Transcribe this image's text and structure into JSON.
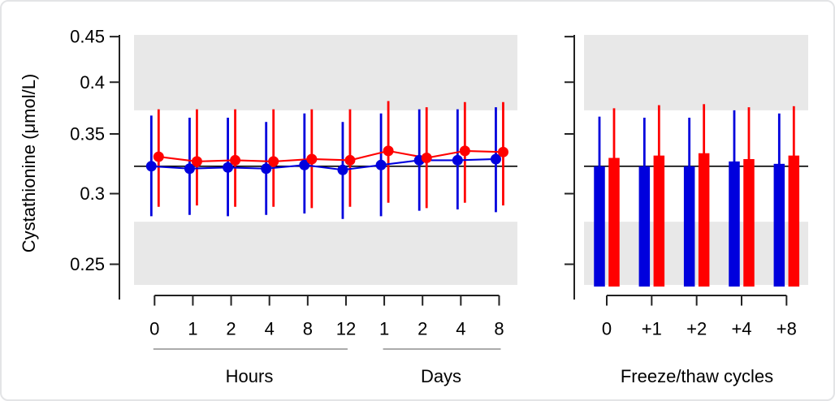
{
  "colors": {
    "series_blue": "#0000dd",
    "series_red": "#ff0000",
    "out_of_range_band": "#e8e8e8",
    "reference_line": "#000000",
    "axis": "#222222",
    "group_rule": "#8f8f8f",
    "text": "#000000",
    "background": "#ffffff",
    "frame_border": "#e3e4e6"
  },
  "labels": {
    "y_axis_title": "Cystathionine (μmol/L)",
    "group_hours": "Hours",
    "group_days": "Days",
    "freeze_thaw": "Freeze/thaw cycles"
  },
  "chart_data": [
    {
      "id": "storage-time-panel",
      "type": "scatter",
      "ylabel": "Cystathionine (μmol/L)",
      "yscale": "log",
      "ylim": [
        0.237,
        0.452
      ],
      "yticks": [
        0.45,
        0.4,
        0.35,
        0.3,
        0.25
      ],
      "ytick_labels": [
        "0.45",
        "0.4",
        "0.35",
        "0.3",
        "0.25"
      ],
      "reference_line": 0.322,
      "shaded_bands": [
        {
          "from": 0.372,
          "to": 0.452
        },
        {
          "from": 0.237,
          "to": 0.279
        }
      ],
      "x_groups": [
        {
          "label": "Hours",
          "ticks": [
            "0",
            "1",
            "2",
            "4",
            "8",
            "12"
          ]
        },
        {
          "label": "Days",
          "ticks": [
            "1",
            "2",
            "4",
            "8"
          ]
        }
      ],
      "grid": false,
      "legend": false,
      "series": [
        {
          "name": "blue",
          "color": "#0000dd",
          "values": [
            0.322,
            0.32,
            0.321,
            0.32,
            0.323,
            0.319,
            0.323,
            0.327,
            0.327,
            0.328
          ],
          "err_lo": [
            0.283,
            0.284,
            0.283,
            0.284,
            0.285,
            0.281,
            0.283,
            0.287,
            0.288,
            0.286
          ],
          "err_hi": [
            0.367,
            0.365,
            0.365,
            0.361,
            0.369,
            0.361,
            0.369,
            0.373,
            0.373,
            0.375
          ]
        },
        {
          "name": "red",
          "color": "#ff0000",
          "values": [
            0.33,
            0.326,
            0.327,
            0.326,
            0.328,
            0.327,
            0.335,
            0.329,
            0.335,
            0.334
          ],
          "err_lo": [
            0.29,
            0.291,
            0.29,
            0.29,
            0.289,
            0.29,
            0.293,
            0.289,
            0.293,
            0.291
          ],
          "err_hi": [
            0.373,
            0.373,
            0.373,
            0.373,
            0.373,
            0.373,
            0.381,
            0.375,
            0.38,
            0.38
          ]
        }
      ]
    },
    {
      "id": "freeze-thaw-panel",
      "type": "bar",
      "xlabel": "Freeze/thaw cycles",
      "categories": [
        "0",
        "+1",
        "+2",
        "+4",
        "+8"
      ],
      "yscale": "log",
      "ylim": [
        0.237,
        0.452
      ],
      "yticks": [
        0.45,
        0.4,
        0.35,
        0.3,
        0.25
      ],
      "ytick_labels_shown": false,
      "reference_line": 0.322,
      "shaded_bands": [
        {
          "from": 0.372,
          "to": 0.452
        },
        {
          "from": 0.237,
          "to": 0.279
        }
      ],
      "grid": false,
      "legend": false,
      "series": [
        {
          "name": "blue",
          "color": "#0000dd",
          "values": [
            0.322,
            0.322,
            0.322,
            0.326,
            0.324
          ],
          "err_hi": [
            0.366,
            0.365,
            0.365,
            0.372,
            0.369
          ]
        },
        {
          "name": "red",
          "color": "#ff0000",
          "values": [
            0.329,
            0.331,
            0.333,
            0.328,
            0.331
          ],
          "err_hi": [
            0.374,
            0.377,
            0.378,
            0.375,
            0.376
          ]
        }
      ]
    }
  ]
}
